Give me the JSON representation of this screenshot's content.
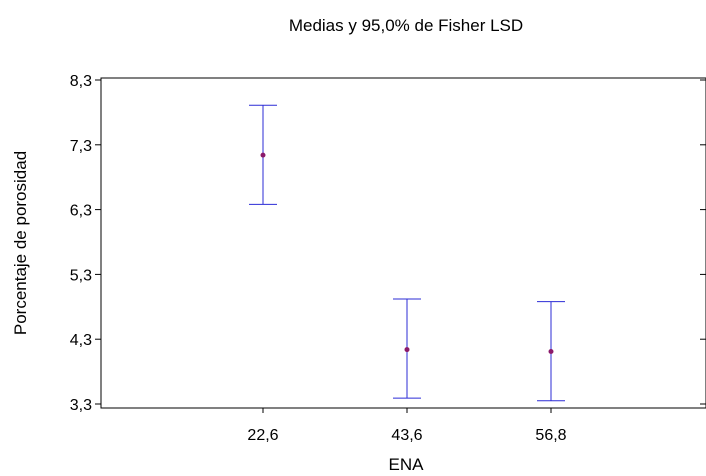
{
  "chart_data": {
    "type": "scatter",
    "title": "Medias y 95,0% de Fisher LSD",
    "xlabel": "ENA",
    "ylabel": "Porcentaje de porosidad",
    "categories": [
      "22,6",
      "43,6",
      "56,8"
    ],
    "means": [
      7.14,
      4.14,
      4.11
    ],
    "lower": [
      6.38,
      3.39,
      3.35
    ],
    "upper": [
      7.91,
      4.92,
      4.88
    ],
    "y_ticks": [
      "3,3",
      "4,3",
      "5,3",
      "6,3",
      "7,3",
      "8,3"
    ],
    "ylim": [
      3.3,
      8.3
    ],
    "grid": false,
    "colors": {
      "error_bar": "#2b2bd6",
      "mean_marker": "#8b1a6b",
      "axis": "#000000"
    }
  }
}
